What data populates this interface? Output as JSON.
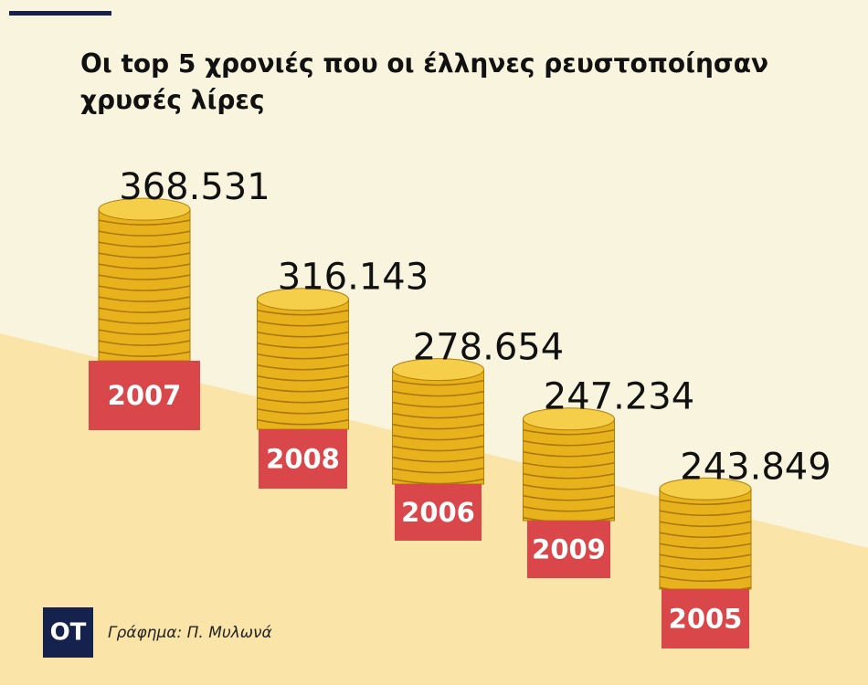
{
  "chart_data": {
    "type": "pictograph",
    "title": "Οι top 5 χρονιές που οι έλληνες ρευστοποίησαν χρυσές λίρες",
    "categories": [
      "2007",
      "2008",
      "2006",
      "2009",
      "2005"
    ],
    "values": [
      368531,
      316143,
      278654,
      247234,
      243849
    ],
    "value_labels": [
      "368.531",
      "316.143",
      "278.654",
      "247.234",
      "243.849"
    ],
    "color": "#e8b21c",
    "label_color": "#d9474a",
    "logo": "OT",
    "credit": "Γράφημα: Π. Μυλωνά"
  }
}
